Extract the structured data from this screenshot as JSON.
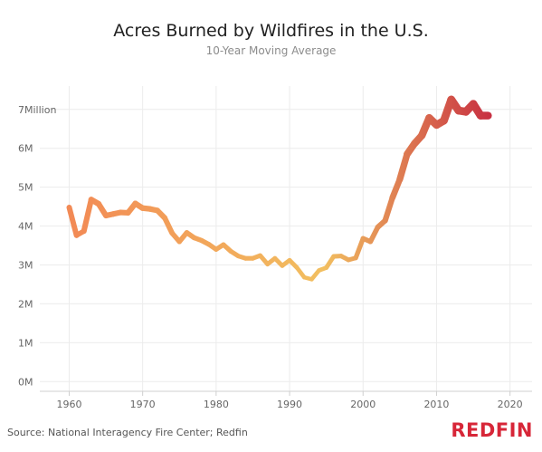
{
  "colors": {
    "line_start": "#f28a55",
    "line_mid": "#f2bf60",
    "line_end": "#c4243f",
    "logo": "#d72638",
    "grid": "#ececec"
  },
  "footer": {
    "source": "Source: National Interagency Fire Center; Redfin",
    "logo": "REDFIN"
  },
  "chart_data": {
    "type": "line",
    "title": "Acres Burned by Wildfires in the U.S.",
    "subtitle": "10-Year Moving Average",
    "xlabel": "",
    "ylabel": "",
    "xlim": [
      1956,
      2023
    ],
    "ylim": [
      -0.25,
      7.6
    ],
    "grid": true,
    "x_ticks": [
      {
        "value": 1960,
        "label": "1960"
      },
      {
        "value": 1970,
        "label": "1970"
      },
      {
        "value": 1980,
        "label": "1980"
      },
      {
        "value": 1990,
        "label": "1990"
      },
      {
        "value": 2000,
        "label": "2000"
      },
      {
        "value": 2010,
        "label": "2010"
      },
      {
        "value": 2020,
        "label": "2020"
      }
    ],
    "y_ticks": [
      {
        "value": 0,
        "label": "0M"
      },
      {
        "value": 1,
        "label": "1M"
      },
      {
        "value": 2,
        "label": "2M"
      },
      {
        "value": 3,
        "label": "3M"
      },
      {
        "value": 4,
        "label": "4M"
      },
      {
        "value": 5,
        "label": "5M"
      },
      {
        "value": 6,
        "label": "6M"
      },
      {
        "value": 7,
        "label": "7Million"
      }
    ],
    "series": [
      {
        "x": [
          1960,
          1961,
          1962,
          1963,
          1964,
          1965,
          1966,
          1967,
          1968,
          1969,
          1970,
          1971,
          1972,
          1973,
          1974,
          1975,
          1976,
          1977,
          1978,
          1979,
          1980,
          1981,
          1982,
          1983,
          1984,
          1985,
          1986,
          1987,
          1988,
          1989,
          1990,
          1991,
          1992,
          1993,
          1994,
          1995,
          1996,
          1997,
          1998,
          1999,
          2000,
          2001,
          2002,
          2003,
          2004,
          2005,
          2006,
          2007,
          2008,
          2009,
          2010,
          2011,
          2012,
          2013,
          2014,
          2015,
          2016,
          2017
        ],
        "values": [
          4.48,
          3.76,
          3.87,
          4.68,
          4.57,
          4.27,
          4.31,
          4.35,
          4.34,
          4.58,
          4.46,
          4.44,
          4.4,
          4.21,
          3.82,
          3.6,
          3.83,
          3.7,
          3.63,
          3.53,
          3.4,
          3.52,
          3.35,
          3.23,
          3.17,
          3.17,
          3.24,
          3.02,
          3.17,
          2.98,
          3.12,
          2.93,
          2.68,
          2.63,
          2.86,
          2.93,
          3.22,
          3.23,
          3.13,
          3.18,
          3.68,
          3.6,
          3.97,
          4.14,
          4.73,
          5.2,
          5.85,
          6.12,
          6.33,
          6.78,
          6.6,
          6.71,
          7.25,
          6.97,
          6.94,
          7.14,
          6.84,
          6.84
        ]
      }
    ]
  }
}
